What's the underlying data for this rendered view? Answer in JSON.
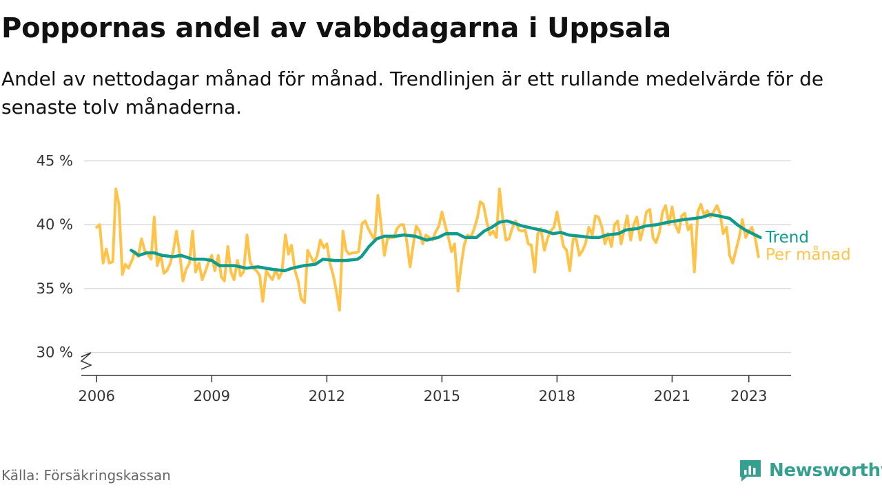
{
  "title": "Poppornas andel av vabbdagarna i Uppsala",
  "subtitle": "Andel av nettodagar månad för månad. Trendlinjen är ett rullande medelvärde för de senaste tolv månaderna.",
  "source": "Källa: Försäkringskassan",
  "brand": "Newsworthy",
  "colors": {
    "trend": "#0f9b8e",
    "monthly": "#ffc34a",
    "grid": "#d9d9d9",
    "axis": "#333333",
    "brand": "#35a08f"
  },
  "chart_data": {
    "type": "line",
    "xlim": [
      2005.6,
      2024.1
    ],
    "ylim": [
      28.2,
      46
    ],
    "yticks": [
      30,
      35,
      40,
      45
    ],
    "ytick_labels": [
      "30 %",
      "35 %",
      "40 %",
      "45 %"
    ],
    "xticks": [
      2006,
      2009,
      2012,
      2015,
      2018,
      2021,
      2023
    ],
    "xtick_labels": [
      "2006",
      "2009",
      "2012",
      "2015",
      "2018",
      "2021",
      "2023"
    ],
    "axis_break": true,
    "series": [
      {
        "name": "Per månad",
        "label": "Per månad",
        "color": "#ffc34a",
        "points": [
          [
            2006.0,
            39.8
          ],
          [
            2006.08,
            40.0
          ],
          [
            2006.17,
            37.0
          ],
          [
            2006.25,
            38.1
          ],
          [
            2006.33,
            37.0
          ],
          [
            2006.42,
            37.1
          ],
          [
            2006.5,
            42.8
          ],
          [
            2006.58,
            41.6
          ],
          [
            2006.67,
            36.1
          ],
          [
            2006.75,
            36.9
          ],
          [
            2006.83,
            36.6
          ],
          [
            2006.92,
            37.2
          ],
          [
            2007.0,
            37.9
          ],
          [
            2007.08,
            37.5
          ],
          [
            2007.17,
            38.9
          ],
          [
            2007.25,
            38.0
          ],
          [
            2007.33,
            37.7
          ],
          [
            2007.42,
            37.3
          ],
          [
            2007.5,
            40.6
          ],
          [
            2007.58,
            36.8
          ],
          [
            2007.67,
            37.7
          ],
          [
            2007.75,
            36.2
          ],
          [
            2007.83,
            36.4
          ],
          [
            2007.92,
            37.0
          ],
          [
            2008.0,
            38.0
          ],
          [
            2008.08,
            39.5
          ],
          [
            2008.17,
            37.6
          ],
          [
            2008.25,
            35.6
          ],
          [
            2008.33,
            36.5
          ],
          [
            2008.42,
            37.0
          ],
          [
            2008.5,
            39.5
          ],
          [
            2008.58,
            36.3
          ],
          [
            2008.67,
            37.0
          ],
          [
            2008.75,
            35.7
          ],
          [
            2008.83,
            36.3
          ],
          [
            2008.92,
            37.1
          ],
          [
            2009.0,
            37.6
          ],
          [
            2009.08,
            36.4
          ],
          [
            2009.17,
            37.6
          ],
          [
            2009.25,
            35.9
          ],
          [
            2009.33,
            35.6
          ],
          [
            2009.42,
            38.3
          ],
          [
            2009.5,
            36.3
          ],
          [
            2009.58,
            35.7
          ],
          [
            2009.67,
            37.2
          ],
          [
            2009.75,
            36.0
          ],
          [
            2009.83,
            36.3
          ],
          [
            2009.92,
            39.2
          ],
          [
            2010.0,
            37.1
          ],
          [
            2010.08,
            36.6
          ],
          [
            2010.17,
            36.4
          ],
          [
            2010.25,
            36.0
          ],
          [
            2010.33,
            34.0
          ],
          [
            2010.42,
            36.4
          ],
          [
            2010.5,
            36.0
          ],
          [
            2010.58,
            35.7
          ],
          [
            2010.67,
            36.5
          ],
          [
            2010.75,
            35.8
          ],
          [
            2010.83,
            36.3
          ],
          [
            2010.92,
            39.2
          ],
          [
            2011.0,
            37.7
          ],
          [
            2011.08,
            38.4
          ],
          [
            2011.17,
            36.4
          ],
          [
            2011.25,
            35.6
          ],
          [
            2011.33,
            34.2
          ],
          [
            2011.42,
            33.9
          ],
          [
            2011.5,
            38.0
          ],
          [
            2011.58,
            37.5
          ],
          [
            2011.67,
            37.0
          ],
          [
            2011.75,
            37.6
          ],
          [
            2011.83,
            38.8
          ],
          [
            2011.92,
            38.2
          ],
          [
            2012.0,
            38.5
          ],
          [
            2012.08,
            37.0
          ],
          [
            2012.17,
            36.0
          ],
          [
            2012.25,
            34.8
          ],
          [
            2012.33,
            33.3
          ],
          [
            2012.42,
            39.5
          ],
          [
            2012.5,
            38.0
          ],
          [
            2012.58,
            37.7
          ],
          [
            2012.67,
            37.8
          ],
          [
            2012.75,
            37.8
          ],
          [
            2012.83,
            37.9
          ],
          [
            2012.92,
            40.1
          ],
          [
            2013.0,
            40.3
          ],
          [
            2013.08,
            39.7
          ],
          [
            2013.17,
            39.2
          ],
          [
            2013.25,
            38.8
          ],
          [
            2013.33,
            42.3
          ],
          [
            2013.42,
            39.8
          ],
          [
            2013.5,
            37.6
          ],
          [
            2013.58,
            38.9
          ],
          [
            2013.67,
            39.0
          ],
          [
            2013.75,
            39.0
          ],
          [
            2013.83,
            39.7
          ],
          [
            2013.92,
            40.0
          ],
          [
            2014.0,
            40.0
          ],
          [
            2014.08,
            38.8
          ],
          [
            2014.17,
            36.7
          ],
          [
            2014.25,
            38.4
          ],
          [
            2014.33,
            39.9
          ],
          [
            2014.42,
            39.5
          ],
          [
            2014.5,
            38.5
          ],
          [
            2014.58,
            39.2
          ],
          [
            2014.67,
            39.0
          ],
          [
            2014.75,
            38.8
          ],
          [
            2014.83,
            39.4
          ],
          [
            2014.92,
            39.9
          ],
          [
            2015.0,
            41.0
          ],
          [
            2015.08,
            40.0
          ],
          [
            2015.17,
            39.0
          ],
          [
            2015.25,
            37.9
          ],
          [
            2015.33,
            38.5
          ],
          [
            2015.42,
            34.8
          ],
          [
            2015.5,
            36.8
          ],
          [
            2015.58,
            38.4
          ],
          [
            2015.67,
            39.2
          ],
          [
            2015.75,
            39.0
          ],
          [
            2015.83,
            39.6
          ],
          [
            2015.92,
            40.5
          ],
          [
            2016.0,
            41.8
          ],
          [
            2016.08,
            41.6
          ],
          [
            2016.17,
            40.2
          ],
          [
            2016.25,
            39.2
          ],
          [
            2016.33,
            39.5
          ],
          [
            2016.42,
            39.0
          ],
          [
            2016.5,
            42.8
          ],
          [
            2016.58,
            40.6
          ],
          [
            2016.67,
            38.8
          ],
          [
            2016.75,
            38.9
          ],
          [
            2016.83,
            39.7
          ],
          [
            2016.92,
            40.3
          ],
          [
            2017.0,
            39.6
          ],
          [
            2017.08,
            39.5
          ],
          [
            2017.17,
            39.6
          ],
          [
            2017.25,
            38.5
          ],
          [
            2017.33,
            38.4
          ],
          [
            2017.42,
            36.3
          ],
          [
            2017.5,
            39.3
          ],
          [
            2017.58,
            39.7
          ],
          [
            2017.67,
            38.0
          ],
          [
            2017.75,
            38.9
          ],
          [
            2017.83,
            39.5
          ],
          [
            2017.92,
            39.8
          ],
          [
            2018.0,
            41.0
          ],
          [
            2018.08,
            39.7
          ],
          [
            2018.17,
            38.3
          ],
          [
            2018.25,
            38.0
          ],
          [
            2018.33,
            36.4
          ],
          [
            2018.42,
            38.9
          ],
          [
            2018.5,
            38.9
          ],
          [
            2018.58,
            37.6
          ],
          [
            2018.67,
            38.0
          ],
          [
            2018.75,
            38.6
          ],
          [
            2018.83,
            39.8
          ],
          [
            2018.92,
            39.2
          ],
          [
            2019.0,
            40.7
          ],
          [
            2019.08,
            40.6
          ],
          [
            2019.17,
            39.8
          ],
          [
            2019.25,
            38.5
          ],
          [
            2019.33,
            39.3
          ],
          [
            2019.42,
            38.3
          ],
          [
            2019.5,
            40.0
          ],
          [
            2019.58,
            40.3
          ],
          [
            2019.67,
            38.5
          ],
          [
            2019.75,
            39.6
          ],
          [
            2019.83,
            40.7
          ],
          [
            2019.92,
            38.8
          ],
          [
            2020.0,
            40.0
          ],
          [
            2020.08,
            40.6
          ],
          [
            2020.17,
            38.8
          ],
          [
            2020.25,
            39.7
          ],
          [
            2020.33,
            41.0
          ],
          [
            2020.42,
            41.2
          ],
          [
            2020.5,
            39.0
          ],
          [
            2020.58,
            38.6
          ],
          [
            2020.67,
            39.4
          ],
          [
            2020.75,
            41.0
          ],
          [
            2020.83,
            41.5
          ],
          [
            2020.92,
            40.0
          ],
          [
            2021.0,
            41.4
          ],
          [
            2021.08,
            40.0
          ],
          [
            2021.17,
            39.4
          ],
          [
            2021.25,
            40.7
          ],
          [
            2021.33,
            40.9
          ],
          [
            2021.42,
            39.6
          ],
          [
            2021.5,
            40.0
          ],
          [
            2021.58,
            36.3
          ],
          [
            2021.67,
            41.0
          ],
          [
            2021.75,
            41.6
          ],
          [
            2021.83,
            40.8
          ],
          [
            2021.92,
            41.1
          ],
          [
            2022.0,
            40.6
          ],
          [
            2022.08,
            41.0
          ],
          [
            2022.17,
            41.5
          ],
          [
            2022.25,
            40.9
          ],
          [
            2022.33,
            39.3
          ],
          [
            2022.42,
            39.8
          ],
          [
            2022.5,
            37.6
          ],
          [
            2022.58,
            37.0
          ],
          [
            2022.67,
            38.1
          ],
          [
            2022.75,
            39.0
          ],
          [
            2022.83,
            40.4
          ],
          [
            2022.92,
            39.0
          ],
          [
            2023.0,
            39.5
          ],
          [
            2023.08,
            39.8
          ],
          [
            2023.17,
            38.9
          ],
          [
            2023.25,
            37.5
          ]
        ]
      },
      {
        "name": "Trend",
        "label": "Trend",
        "color": "#0f9b8e",
        "points": [
          [
            2006.9,
            38.0
          ],
          [
            2007.1,
            37.6
          ],
          [
            2007.3,
            37.8
          ],
          [
            2007.5,
            37.8
          ],
          [
            2007.7,
            37.6
          ],
          [
            2008.0,
            37.5
          ],
          [
            2008.2,
            37.6
          ],
          [
            2008.5,
            37.3
          ],
          [
            2008.8,
            37.3
          ],
          [
            2009.0,
            37.2
          ],
          [
            2009.2,
            36.8
          ],
          [
            2009.6,
            36.8
          ],
          [
            2009.9,
            36.6
          ],
          [
            2010.2,
            36.7
          ],
          [
            2010.6,
            36.5
          ],
          [
            2010.9,
            36.4
          ],
          [
            2011.1,
            36.6
          ],
          [
            2011.4,
            36.8
          ],
          [
            2011.7,
            36.9
          ],
          [
            2011.9,
            37.3
          ],
          [
            2012.2,
            37.2
          ],
          [
            2012.5,
            37.2
          ],
          [
            2012.8,
            37.3
          ],
          [
            2012.9,
            37.5
          ],
          [
            2013.1,
            38.3
          ],
          [
            2013.3,
            38.9
          ],
          [
            2013.5,
            39.1
          ],
          [
            2013.8,
            39.1
          ],
          [
            2014.0,
            39.2
          ],
          [
            2014.3,
            39.1
          ],
          [
            2014.6,
            38.8
          ],
          [
            2014.9,
            39.0
          ],
          [
            2015.1,
            39.3
          ],
          [
            2015.4,
            39.3
          ],
          [
            2015.6,
            39.0
          ],
          [
            2015.9,
            39.0
          ],
          [
            2016.1,
            39.5
          ],
          [
            2016.3,
            39.8
          ],
          [
            2016.5,
            40.2
          ],
          [
            2016.7,
            40.3
          ],
          [
            2016.9,
            40.1
          ],
          [
            2017.1,
            39.9
          ],
          [
            2017.4,
            39.7
          ],
          [
            2017.7,
            39.5
          ],
          [
            2017.9,
            39.3
          ],
          [
            2018.1,
            39.4
          ],
          [
            2018.3,
            39.2
          ],
          [
            2018.6,
            39.1
          ],
          [
            2018.9,
            39.0
          ],
          [
            2019.1,
            39.0
          ],
          [
            2019.3,
            39.2
          ],
          [
            2019.6,
            39.3
          ],
          [
            2019.8,
            39.6
          ],
          [
            2020.1,
            39.7
          ],
          [
            2020.3,
            39.9
          ],
          [
            2020.6,
            40.0
          ],
          [
            2020.9,
            40.2
          ],
          [
            2021.1,
            40.3
          ],
          [
            2021.3,
            40.4
          ],
          [
            2021.6,
            40.5
          ],
          [
            2021.8,
            40.6
          ],
          [
            2022.0,
            40.8
          ],
          [
            2022.2,
            40.7
          ],
          [
            2022.5,
            40.5
          ],
          [
            2022.7,
            40.0
          ],
          [
            2022.9,
            39.6
          ],
          [
            2023.1,
            39.3
          ],
          [
            2023.3,
            39.0
          ]
        ]
      }
    ]
  }
}
